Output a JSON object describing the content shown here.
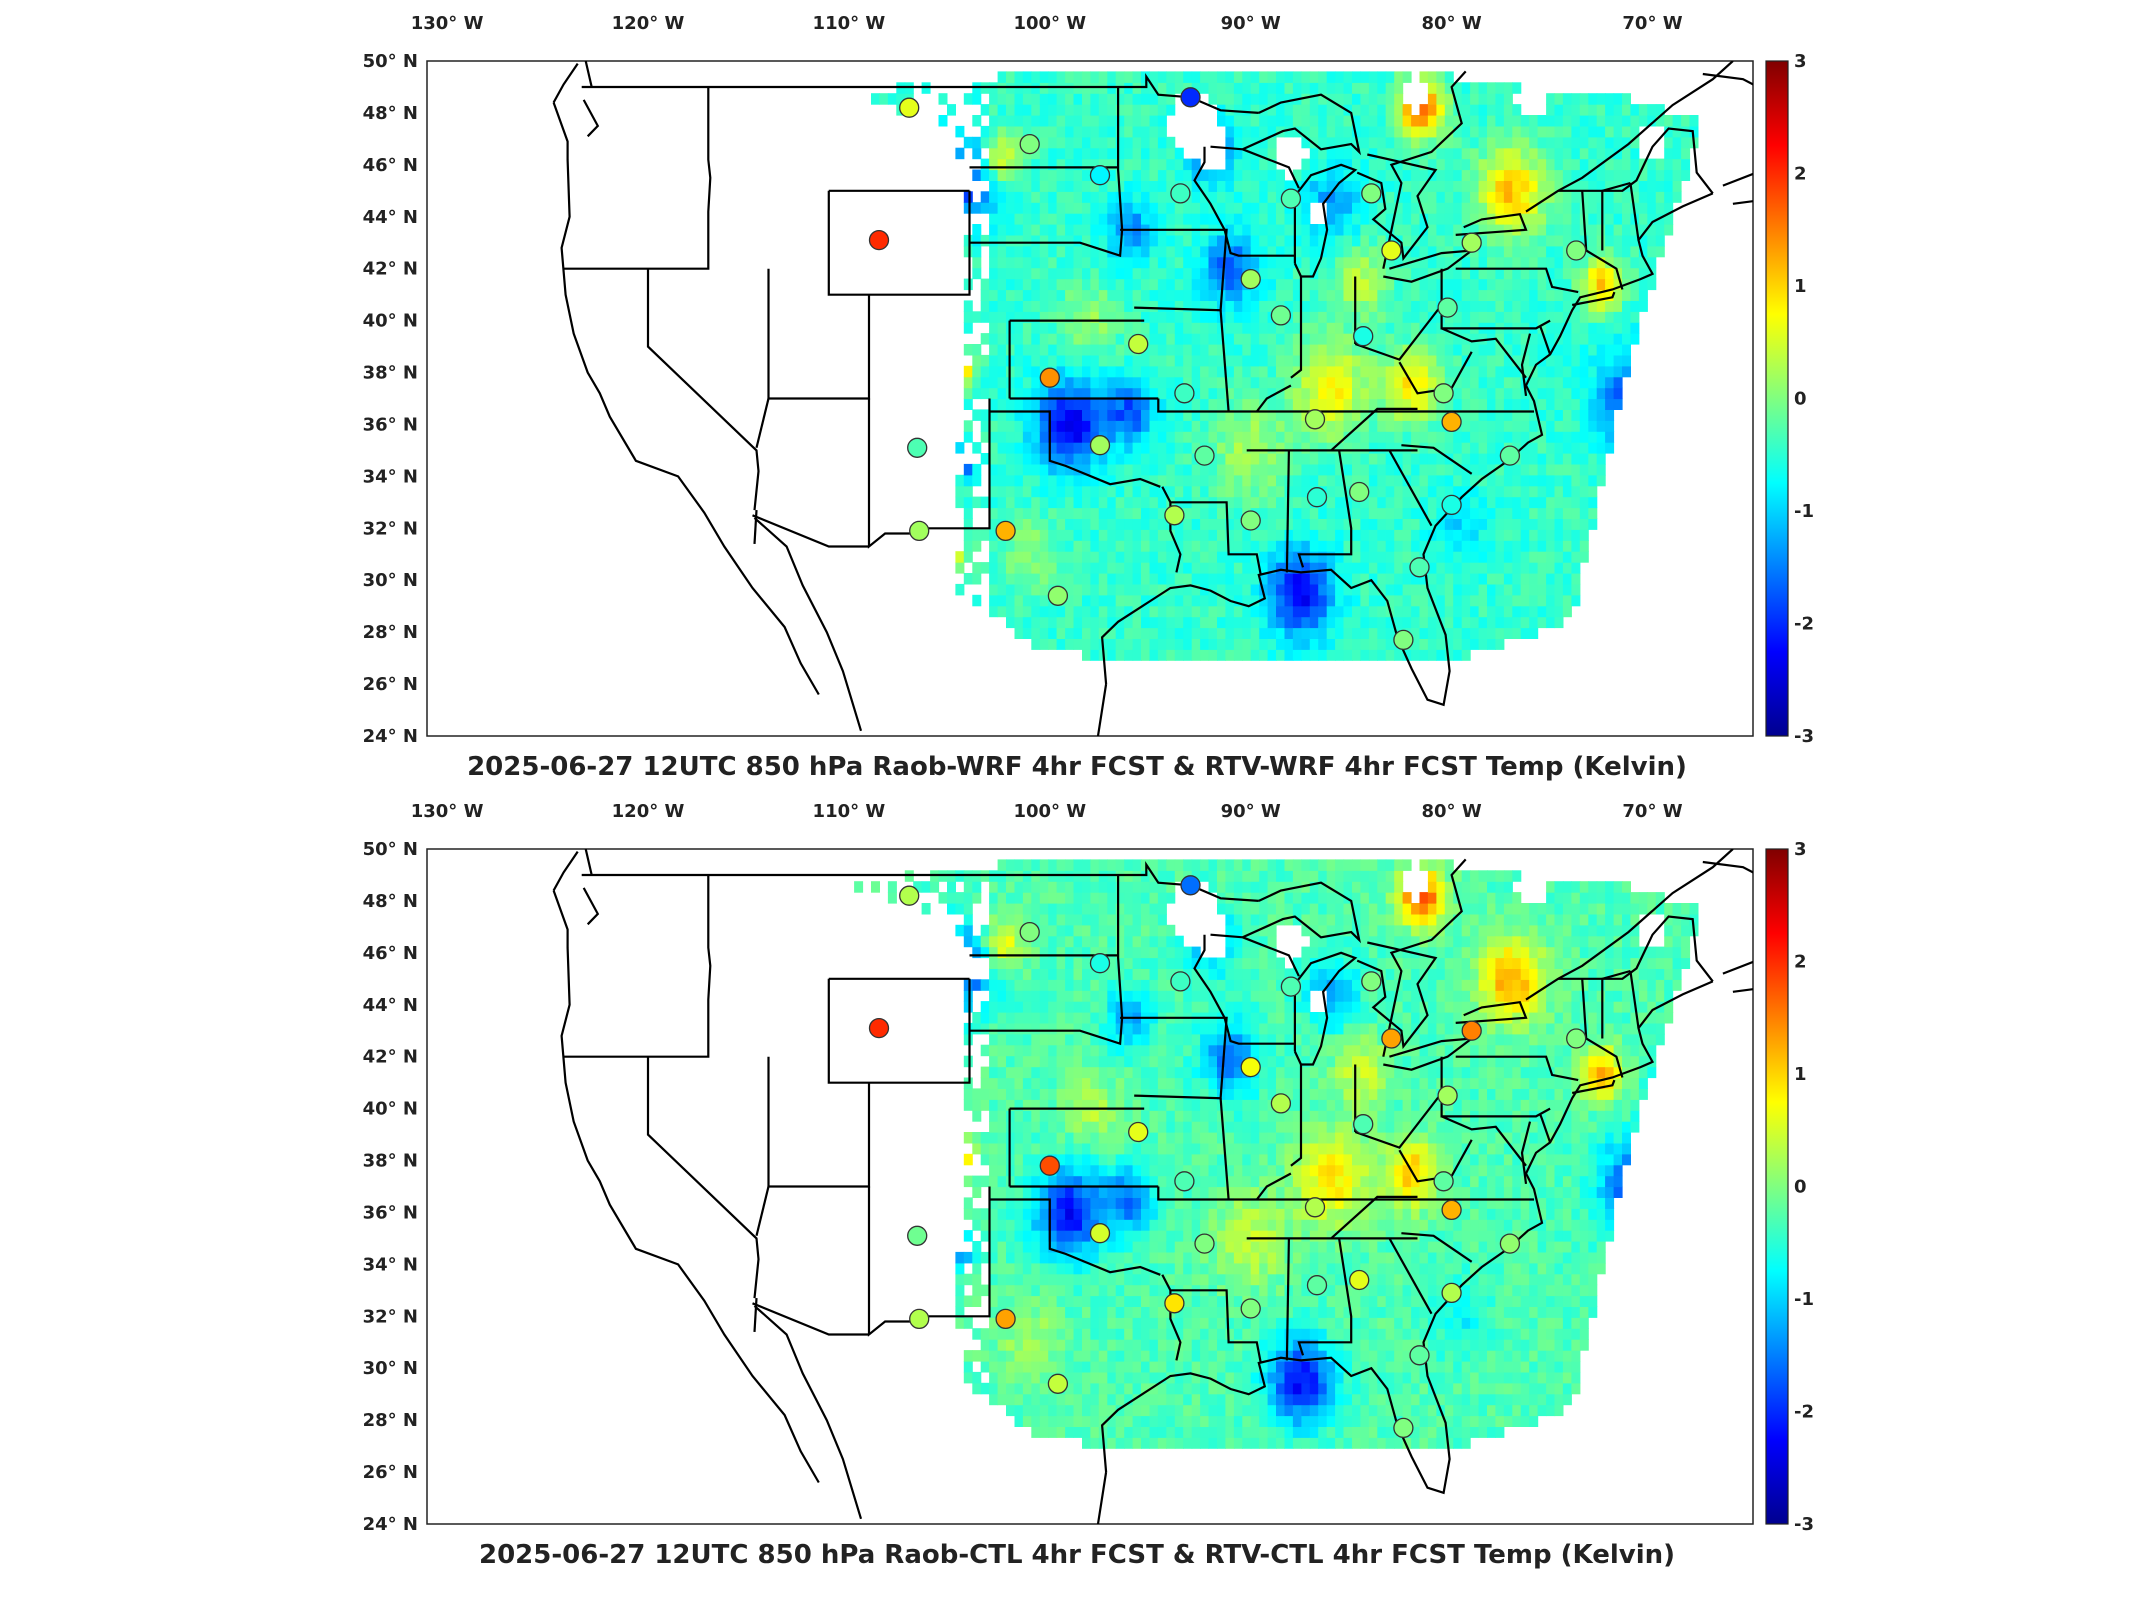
{
  "figure": {
    "panels": [
      {
        "title": "2025-06-27 12UTC 850 hPa Raob-WRF 4hr FCST & RTV-WRF 4hr FCST Temp (Kelvin)",
        "field_shift": 0,
        "stations": [
          {
            "lon": -107,
            "lat": 48.2,
            "v": 0.6
          },
          {
            "lon": -101,
            "lat": 46.8,
            "v": 0.0
          },
          {
            "lon": -97.5,
            "lat": 45.6,
            "v": -0.8
          },
          {
            "lon": -93,
            "lat": 48.6,
            "v": -2.0
          },
          {
            "lon": -93.5,
            "lat": 44.9,
            "v": -0.4
          },
          {
            "lon": -108.5,
            "lat": 43.1,
            "v": 2.0
          },
          {
            "lon": -90,
            "lat": 41.6,
            "v": 0.2
          },
          {
            "lon": -88.5,
            "lat": 40.2,
            "v": -0.1
          },
          {
            "lon": -88,
            "lat": 44.7,
            "v": -0.3
          },
          {
            "lon": -84,
            "lat": 44.9,
            "v": 0.0
          },
          {
            "lon": -83,
            "lat": 42.7,
            "v": 0.6
          },
          {
            "lon": -79,
            "lat": 43.0,
            "v": 0.2
          },
          {
            "lon": -73.8,
            "lat": 42.7,
            "v": 0.0
          },
          {
            "lon": -95.6,
            "lat": 39.1,
            "v": 0.4
          },
          {
            "lon": -100,
            "lat": 37.8,
            "v": 1.4
          },
          {
            "lon": -106.6,
            "lat": 35.1,
            "v": -0.3
          },
          {
            "lon": -97.5,
            "lat": 35.2,
            "v": 0.2
          },
          {
            "lon": -93.3,
            "lat": 37.2,
            "v": -0.4
          },
          {
            "lon": -92.3,
            "lat": 34.8,
            "v": -0.2
          },
          {
            "lon": -86.8,
            "lat": 36.2,
            "v": 0.2
          },
          {
            "lon": -84.4,
            "lat": 39.4,
            "v": -0.6
          },
          {
            "lon": -80.2,
            "lat": 40.5,
            "v": -0.2
          },
          {
            "lon": -80.4,
            "lat": 37.2,
            "v": 0.0
          },
          {
            "lon": -80.0,
            "lat": 36.1,
            "v": 1.2
          },
          {
            "lon": -77.1,
            "lat": 34.8,
            "v": -0.2
          },
          {
            "lon": -80.0,
            "lat": 32.9,
            "v": -0.6
          },
          {
            "lon": -84.6,
            "lat": 33.4,
            "v": 0.0
          },
          {
            "lon": -86.7,
            "lat": 33.2,
            "v": -0.5
          },
          {
            "lon": -90.0,
            "lat": 32.3,
            "v": 0.0
          },
          {
            "lon": -93.8,
            "lat": 32.5,
            "v": 0.3
          },
          {
            "lon": -106.5,
            "lat": 31.9,
            "v": 0.2
          },
          {
            "lon": -102.2,
            "lat": 31.9,
            "v": 1.2
          },
          {
            "lon": -99.6,
            "lat": 29.4,
            "v": 0.1
          },
          {
            "lon": -81.6,
            "lat": 30.5,
            "v": -0.3
          },
          {
            "lon": -82.4,
            "lat": 27.7,
            "v": 0.0
          }
        ]
      },
      {
        "title": "2025-06-27 12UTC 850 hPa Raob-CTL 4hr FCST & RTV-CTL 4hr FCST Temp (Kelvin)",
        "field_shift": 0.15,
        "stations": [
          {
            "lon": -107,
            "lat": 48.2,
            "v": 0.3
          },
          {
            "lon": -101,
            "lat": 46.8,
            "v": 0.0
          },
          {
            "lon": -97.5,
            "lat": 45.6,
            "v": -0.6
          },
          {
            "lon": -93,
            "lat": 48.6,
            "v": -1.6
          },
          {
            "lon": -93.5,
            "lat": 44.9,
            "v": -0.4
          },
          {
            "lon": -108.5,
            "lat": 43.1,
            "v": 2.0
          },
          {
            "lon": -90,
            "lat": 41.6,
            "v": 0.7
          },
          {
            "lon": -88.5,
            "lat": 40.2,
            "v": 0.3
          },
          {
            "lon": -88,
            "lat": 44.7,
            "v": -0.3
          },
          {
            "lon": -84,
            "lat": 44.9,
            "v": 0.0
          },
          {
            "lon": -83,
            "lat": 42.7,
            "v": 1.3
          },
          {
            "lon": -79,
            "lat": 43.0,
            "v": 1.5
          },
          {
            "lon": -73.8,
            "lat": 42.7,
            "v": 0.0
          },
          {
            "lon": -95.6,
            "lat": 39.1,
            "v": 0.6
          },
          {
            "lon": -100,
            "lat": 37.8,
            "v": 1.8
          },
          {
            "lon": -106.6,
            "lat": 35.1,
            "v": -0.1
          },
          {
            "lon": -97.5,
            "lat": 35.2,
            "v": 0.5
          },
          {
            "lon": -93.3,
            "lat": 37.2,
            "v": -0.3
          },
          {
            "lon": -92.3,
            "lat": 34.8,
            "v": 0.0
          },
          {
            "lon": -86.8,
            "lat": 36.2,
            "v": 0.3
          },
          {
            "lon": -84.4,
            "lat": 39.4,
            "v": -0.3
          },
          {
            "lon": -80.2,
            "lat": 40.5,
            "v": 0.2
          },
          {
            "lon": -80.4,
            "lat": 37.2,
            "v": -0.2
          },
          {
            "lon": -80.0,
            "lat": 36.1,
            "v": 1.2
          },
          {
            "lon": -77.1,
            "lat": 34.8,
            "v": 0.1
          },
          {
            "lon": -80.0,
            "lat": 32.9,
            "v": 0.3
          },
          {
            "lon": -84.6,
            "lat": 33.4,
            "v": 0.6
          },
          {
            "lon": -86.7,
            "lat": 33.2,
            "v": -0.2
          },
          {
            "lon": -90.0,
            "lat": 32.3,
            "v": 0.0
          },
          {
            "lon": -93.8,
            "lat": 32.5,
            "v": 0.9
          },
          {
            "lon": -106.5,
            "lat": 31.9,
            "v": 0.3
          },
          {
            "lon": -102.2,
            "lat": 31.9,
            "v": 1.3
          },
          {
            "lon": -99.6,
            "lat": 29.4,
            "v": 0.4
          },
          {
            "lon": -81.6,
            "lat": 30.5,
            "v": -0.2
          },
          {
            "lon": -82.4,
            "lat": 27.7,
            "v": 0.0
          }
        ]
      }
    ],
    "axes": {
      "lon_labels": [
        {
          "value": -130,
          "text": "130° W"
        },
        {
          "value": -120,
          "text": "120° W"
        },
        {
          "value": -110,
          "text": "110° W"
        },
        {
          "value": -100,
          "text": "100° W"
        },
        {
          "value": -90,
          "text": "90° W"
        },
        {
          "value": -80,
          "text": "80° W"
        },
        {
          "value": -70,
          "text": "70° W"
        }
      ],
      "lat_labels": [
        {
          "value": 50,
          "text": "50° N"
        },
        {
          "value": 48,
          "text": "48° N"
        },
        {
          "value": 46,
          "text": "46° N"
        },
        {
          "value": 44,
          "text": "44° N"
        },
        {
          "value": 42,
          "text": "42° N"
        },
        {
          "value": 40,
          "text": "40° N"
        },
        {
          "value": 38,
          "text": "38° N"
        },
        {
          "value": 36,
          "text": "36° N"
        },
        {
          "value": 34,
          "text": "34° N"
        },
        {
          "value": 32,
          "text": "32° N"
        },
        {
          "value": 30,
          "text": "30° N"
        },
        {
          "value": 28,
          "text": "28° N"
        },
        {
          "value": 26,
          "text": "26° N"
        },
        {
          "value": 24,
          "text": "24° N"
        }
      ],
      "lon_range": [
        -131,
        -65
      ],
      "lat_range": [
        24,
        50
      ]
    },
    "colorbar": {
      "ticks": [
        "3",
        "2",
        "1",
        "0",
        "-1",
        "-2",
        "-3"
      ],
      "range": [
        -3,
        3
      ],
      "colormap": "jet"
    },
    "colors": {
      "outline": "#000000",
      "station_edge": "#333333"
    }
  }
}
